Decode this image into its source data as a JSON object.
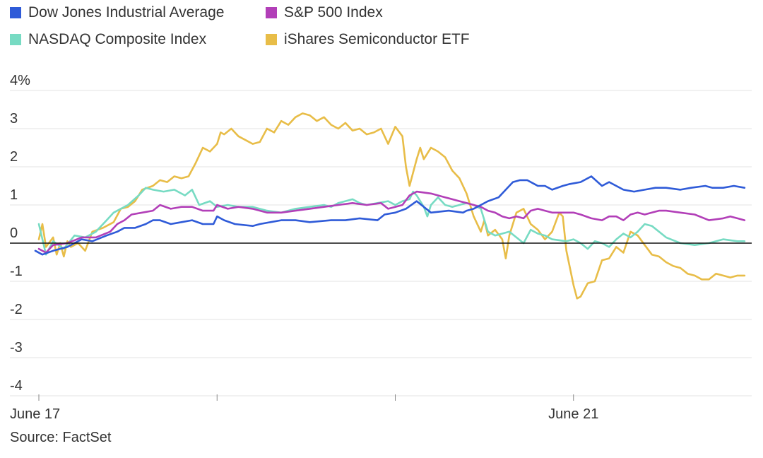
{
  "colors": {
    "dow": "#2f5bd8",
    "sp500": "#b23fb8",
    "nasdaq": "#77dbc3",
    "semis": "#e8bd48",
    "grid": "#e3e3e3",
    "zero": "#111111",
    "text": "#333333"
  },
  "legend": [
    {
      "name": "Dow Jones Industrial Average",
      "color_key": "dow"
    },
    {
      "name": "S&P 500 Index",
      "color_key": "sp500"
    },
    {
      "name": "NASDAQ Composite Index",
      "color_key": "nasdaq"
    },
    {
      "name": "iShares Semiconductor ETF",
      "color_key": "semis"
    }
  ],
  "source": "Source: FactSet",
  "chart_data": {
    "type": "line",
    "title": "",
    "xlabel": "",
    "ylabel": "",
    "ylim": [
      -4,
      4
    ],
    "xlim": [
      0,
      100
    ],
    "yticks": [
      {
        "value": 4,
        "label": "4%"
      },
      {
        "value": 3,
        "label": "3"
      },
      {
        "value": 2,
        "label": "2"
      },
      {
        "value": 1,
        "label": "1"
      },
      {
        "value": 0,
        "label": "0"
      },
      {
        "value": -1,
        "label": "-1"
      },
      {
        "value": -2,
        "label": "-2"
      },
      {
        "value": -3,
        "label": "-3"
      },
      {
        "value": -4,
        "label": "-4"
      }
    ],
    "xticks": [
      {
        "value": 0,
        "label": "June 17"
      },
      {
        "value": 25,
        "label": ""
      },
      {
        "value": 50,
        "label": ""
      },
      {
        "value": 75,
        "label": "June 21"
      }
    ],
    "grid": true,
    "legend_position": "top-left",
    "series": [
      {
        "name": "Dow Jones Industrial Average",
        "color_key": "dow",
        "x": [
          -0.5,
          0.5,
          2,
          4,
          6,
          7.5,
          9.5,
          11,
          12,
          13.5,
          15,
          16,
          17,
          18.5,
          20,
          21.5,
          23,
          24.5,
          25,
          26,
          27.5,
          30,
          31,
          32.5,
          34,
          36,
          38,
          41,
          43,
          45,
          47.5,
          48.5,
          50,
          51.5,
          53,
          55,
          57.5,
          59.5,
          60,
          61,
          62,
          63,
          64.5,
          65.5,
          66.5,
          67.5,
          68.5,
          69.5,
          70,
          71,
          72,
          73.5,
          74.5,
          76,
          77.5,
          79,
          80,
          81,
          82,
          83.5,
          85,
          86.5,
          88,
          90,
          91.5,
          93.5,
          94.5,
          96,
          97.5,
          99
        ],
        "y": [
          -0.2,
          -0.3,
          -0.2,
          -0.1,
          0.1,
          0.05,
          0.2,
          0.3,
          0.4,
          0.4,
          0.5,
          0.6,
          0.6,
          0.5,
          0.55,
          0.6,
          0.5,
          0.5,
          0.7,
          0.6,
          0.5,
          0.45,
          0.5,
          0.55,
          0.6,
          0.6,
          0.55,
          0.6,
          0.6,
          0.65,
          0.6,
          0.75,
          0.8,
          0.9,
          1.1,
          0.8,
          0.85,
          0.8,
          0.85,
          0.9,
          1.0,
          1.1,
          1.2,
          1.4,
          1.6,
          1.65,
          1.65,
          1.55,
          1.5,
          1.5,
          1.4,
          1.5,
          1.55,
          1.6,
          1.75,
          1.5,
          1.6,
          1.5,
          1.4,
          1.35,
          1.4,
          1.45,
          1.45,
          1.4,
          1.45,
          1.5,
          1.45,
          1.45,
          1.5,
          1.45
        ]
      },
      {
        "name": "S&P 500 Index",
        "color_key": "sp500",
        "x": [
          0,
          1,
          2,
          4,
          6,
          8,
          10,
          11,
          12,
          13,
          14.5,
          16,
          17,
          18.5,
          20,
          21.5,
          23,
          24.5,
          25,
          26.5,
          28,
          30,
          32,
          34,
          36,
          38,
          40,
          42,
          44,
          46,
          48,
          49,
          50,
          51,
          52,
          53,
          55,
          57,
          59,
          60,
          61,
          62,
          63,
          64,
          65,
          66,
          67,
          68,
          69,
          70,
          71,
          72,
          73,
          75,
          76,
          77.5,
          79,
          80,
          81,
          82,
          83,
          84,
          85,
          86,
          87,
          88,
          90,
          92,
          94,
          96,
          97,
          98,
          99
        ],
        "y": [
          -0.15,
          -0.25,
          -0.05,
          0.0,
          0.15,
          0.15,
          0.3,
          0.5,
          0.6,
          0.75,
          0.8,
          0.85,
          1.0,
          0.9,
          0.95,
          0.95,
          0.85,
          0.85,
          1.0,
          0.9,
          0.95,
          0.9,
          0.8,
          0.8,
          0.85,
          0.9,
          0.95,
          1.0,
          1.05,
          1.0,
          1.05,
          0.9,
          0.95,
          1.0,
          1.25,
          1.35,
          1.3,
          1.2,
          1.1,
          1.05,
          1.0,
          0.95,
          0.85,
          0.8,
          0.7,
          0.65,
          0.7,
          0.65,
          0.85,
          0.9,
          0.85,
          0.8,
          0.8,
          0.8,
          0.75,
          0.65,
          0.6,
          0.7,
          0.7,
          0.6,
          0.75,
          0.8,
          0.75,
          0.8,
          0.85,
          0.85,
          0.8,
          0.75,
          0.6,
          0.65,
          0.7,
          0.65,
          0.6
        ]
      },
      {
        "name": "NASDAQ Composite Index",
        "color_key": "nasdaq",
        "x": [
          0,
          1,
          2,
          3.5,
          5,
          6.5,
          8,
          9.5,
          10.5,
          11.5,
          12.5,
          14,
          15,
          16,
          17.5,
          19,
          20.5,
          21.5,
          22.5,
          24,
          25,
          26.5,
          28,
          30,
          32,
          34,
          36,
          38,
          40,
          41,
          42,
          43,
          44,
          45,
          46,
          47.5,
          49,
          50,
          51,
          52,
          52.5,
          53,
          53.5,
          54,
          54.5,
          55,
          56,
          57,
          58,
          59,
          60,
          61,
          62,
          63,
          64,
          65,
          66,
          67,
          68,
          69,
          70,
          71,
          72,
          74,
          75,
          76,
          77,
          78,
          79,
          80,
          81,
          82,
          83,
          84,
          85,
          86,
          88,
          90,
          92,
          94,
          96,
          98,
          99
        ],
        "y": [
          0.5,
          -0.3,
          0.05,
          -0.15,
          0.2,
          0.15,
          0.3,
          0.6,
          0.8,
          0.9,
          1.0,
          1.25,
          1.45,
          1.4,
          1.35,
          1.4,
          1.25,
          1.4,
          1.0,
          1.1,
          0.95,
          1.0,
          0.95,
          0.95,
          0.85,
          0.8,
          0.9,
          0.95,
          1.0,
          0.95,
          1.05,
          1.1,
          1.15,
          1.05,
          1.0,
          1.05,
          1.1,
          1.0,
          1.1,
          1.15,
          1.35,
          1.25,
          1.1,
          0.95,
          0.7,
          1.0,
          1.2,
          1.0,
          0.95,
          1.0,
          1.05,
          1.0,
          0.9,
          0.3,
          0.2,
          0.25,
          0.3,
          0.15,
          0.0,
          0.35,
          0.25,
          0.2,
          0.1,
          0.05,
          0.1,
          0.0,
          -0.15,
          0.05,
          0.0,
          -0.1,
          0.1,
          0.25,
          0.15,
          0.3,
          0.5,
          0.45,
          0.15,
          0.0,
          -0.05,
          0.0,
          0.1,
          0.05,
          0.05
        ]
      },
      {
        "name": "iShares Semiconductor ETF",
        "color_key": "semis",
        "x": [
          0,
          0.5,
          1,
          2,
          2.5,
          3,
          3.5,
          4,
          4.5,
          5.5,
          6.5,
          7.5,
          9,
          10.5,
          11.5,
          12.5,
          13.5,
          14.5,
          16,
          17,
          18,
          19,
          20,
          21,
          22,
          23,
          24,
          25,
          25.5,
          26,
          27,
          28,
          29,
          30,
          31,
          32,
          33,
          34,
          35,
          36,
          37,
          38,
          39,
          40,
          41,
          42,
          43,
          44,
          45,
          46,
          47,
          48,
          49,
          50,
          51,
          51.5,
          52,
          53,
          53.5,
          54,
          55,
          56,
          57,
          58,
          59,
          60,
          61,
          62,
          62.5,
          63,
          64,
          65,
          65.5,
          66,
          67,
          68,
          69,
          70,
          71,
          72,
          73,
          73.5,
          74,
          75,
          75.5,
          76,
          77,
          78,
          79,
          80,
          81,
          82,
          83,
          84,
          85,
          86,
          87,
          88,
          89,
          90,
          91,
          92,
          93,
          94,
          95,
          96,
          97,
          98,
          99
        ],
        "y": [
          0.1,
          0.5,
          -0.1,
          0.15,
          -0.3,
          0.0,
          -0.35,
          0.05,
          -0.1,
          0.0,
          -0.2,
          0.3,
          0.4,
          0.55,
          0.9,
          0.95,
          1.1,
          1.4,
          1.5,
          1.65,
          1.6,
          1.75,
          1.7,
          1.75,
          2.1,
          2.5,
          2.4,
          2.6,
          2.9,
          2.85,
          3.0,
          2.8,
          2.7,
          2.6,
          2.65,
          3.0,
          2.9,
          3.2,
          3.1,
          3.3,
          3.4,
          3.35,
          3.2,
          3.3,
          3.1,
          3.0,
          3.15,
          2.95,
          3.0,
          2.85,
          2.9,
          3.0,
          2.6,
          3.05,
          2.8,
          2.0,
          1.5,
          2.2,
          2.5,
          2.2,
          2.5,
          2.4,
          2.25,
          1.9,
          1.7,
          1.3,
          0.7,
          0.3,
          0.6,
          0.2,
          0.35,
          0.1,
          -0.4,
          0.2,
          0.8,
          0.9,
          0.5,
          0.35,
          0.1,
          0.3,
          0.8,
          0.7,
          -0.2,
          -1.1,
          -1.45,
          -1.4,
          -1.05,
          -1.0,
          -0.45,
          -0.4,
          -0.1,
          -0.25,
          0.3,
          0.2,
          -0.05,
          -0.3,
          -0.35,
          -0.5,
          -0.6,
          -0.65,
          -0.8,
          -0.85,
          -0.95,
          -0.95,
          -0.8,
          -0.85,
          -0.9,
          -0.85,
          -0.85
        ]
      }
    ]
  }
}
